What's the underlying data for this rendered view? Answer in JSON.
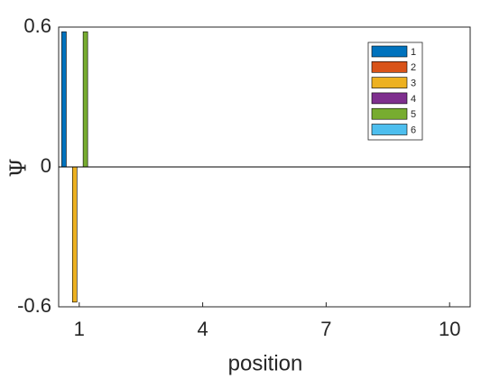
{
  "chart_data": {
    "type": "bar",
    "xlabel": "position",
    "ylabel": "Ψ",
    "x": [
      1,
      2,
      3,
      4,
      5,
      6,
      7,
      8,
      9,
      10
    ],
    "series": [
      {
        "name": "1",
        "color": "#0072BD",
        "values": [
          0.58,
          0,
          0,
          0,
          0,
          0,
          0,
          0,
          0,
          0
        ]
      },
      {
        "name": "2",
        "color": "#D95319",
        "values": [
          0,
          0,
          0,
          0,
          0,
          0,
          0,
          0,
          0,
          0
        ]
      },
      {
        "name": "3",
        "color": "#EDB120",
        "values": [
          -0.58,
          0,
          0,
          0,
          0,
          0,
          0,
          0,
          0,
          0
        ]
      },
      {
        "name": "4",
        "color": "#7E2F8E",
        "values": [
          0,
          0,
          0,
          0,
          0,
          0,
          0,
          0,
          0,
          0
        ]
      },
      {
        "name": "5",
        "color": "#77AC30",
        "values": [
          0.58,
          0,
          0,
          0,
          0,
          0,
          0,
          0,
          0,
          0
        ]
      },
      {
        "name": "6",
        "color": "#4DBEEE",
        "values": [
          0,
          0,
          0,
          0,
          0,
          0,
          0,
          0,
          0,
          0
        ]
      }
    ],
    "xlim": [
      0.5,
      10.5
    ],
    "xticks": [
      1,
      4,
      7,
      10
    ],
    "ylim": [
      -0.6,
      0.6
    ],
    "yticks": [
      -0.6,
      0,
      0.6
    ],
    "legend": "top-right"
  }
}
